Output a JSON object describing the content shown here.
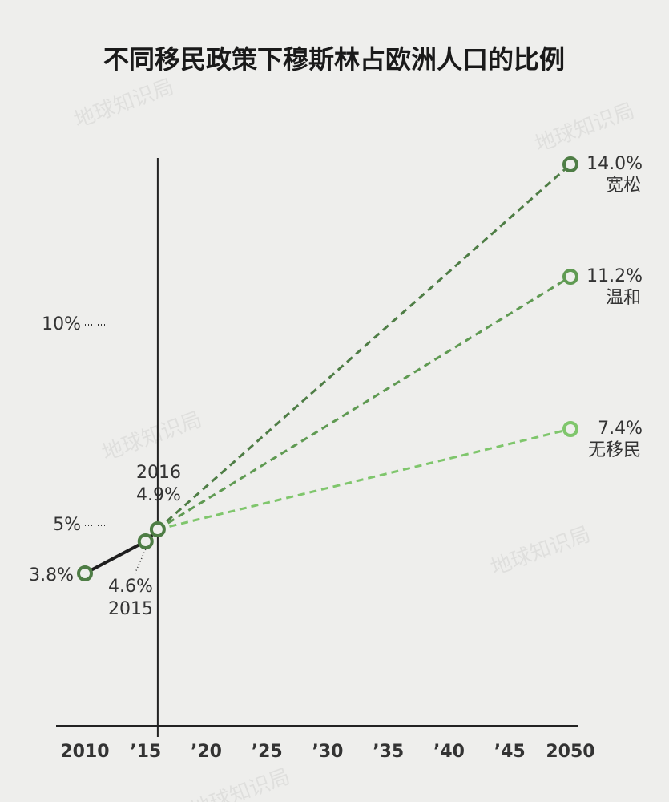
{
  "chart_data": {
    "type": "line",
    "title": "不同移民政策下穆斯林占欧洲人口的比例",
    "watermark": "地球知识局",
    "xlim": [
      2010,
      2050
    ],
    "xticks": [
      2010,
      {
        "value": 2015,
        "label": "’15"
      },
      {
        "value": 2020,
        "label": "’20"
      },
      {
        "value": 2025,
        "label": "’25"
      },
      {
        "value": 2030,
        "label": "’30"
      },
      {
        "value": 2035,
        "label": "’35"
      },
      {
        "value": 2040,
        "label": "’40"
      },
      {
        "value": 2045,
        "label": "’45"
      },
      2050
    ],
    "ylim": [
      0,
      14
    ],
    "yticks": [
      {
        "value": 5,
        "label": "5%"
      },
      {
        "value": 10,
        "label": "10%"
      }
    ],
    "series": [
      {
        "color": "#1e1e1e",
        "x": [
          2010,
          2015,
          2016
        ],
        "values": [
          3.8,
          4.6,
          4.9
        ],
        "value_labels": [
          "3.8%",
          "4.6%",
          "4.9%"
        ]
      },
      {
        "name": "宽松",
        "color": "#4e7d45",
        "x": [
          2016,
          2050
        ],
        "values": [
          4.9,
          14.0
        ],
        "value_labels": [
          "4.9%",
          "14.0%"
        ]
      },
      {
        "name": "温和",
        "color": "#5f9a52",
        "x": [
          2016,
          2050
        ],
        "values": [
          4.9,
          11.2
        ],
        "value_labels": [
          "4.9%",
          "11.2%"
        ]
      },
      {
        "name": "无移民",
        "color": "#7fc66c",
        "x": [
          2016,
          2050
        ],
        "values": [
          4.9,
          7.4
        ],
        "value_labels": [
          "4.9%",
          "7.4%"
        ]
      }
    ]
  }
}
